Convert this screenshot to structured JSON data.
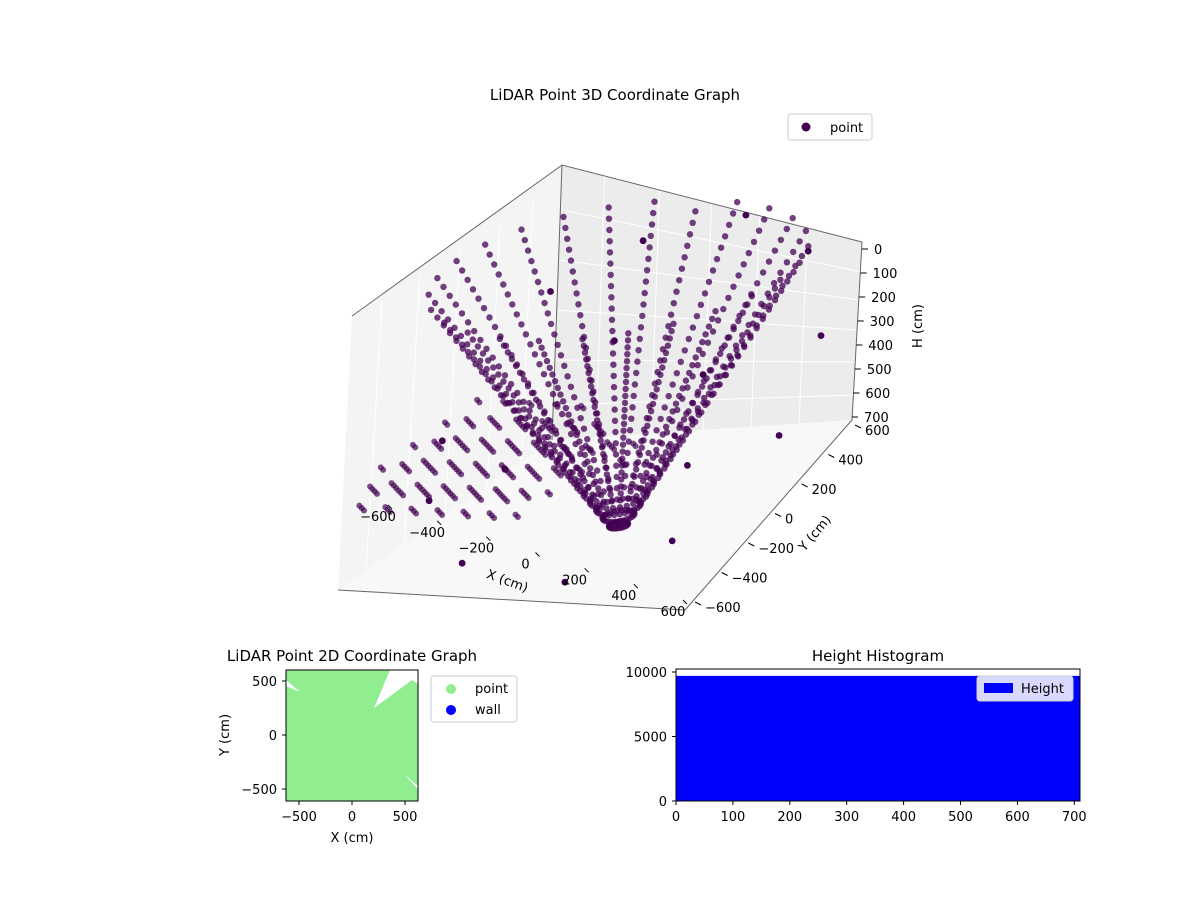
{
  "chart_data": [
    {
      "type": "scatter",
      "projection": "3d",
      "title": "LiDAR Point 3D Coordinate Graph",
      "xlabel": "X (cm)",
      "ylabel": "Y (cm)",
      "zlabel": "H (cm)",
      "x_ticks": [
        "−600",
        "−400",
        "−200",
        "0",
        "200",
        "400",
        "600"
      ],
      "y_ticks": [
        "−600",
        "−400",
        "−200",
        "0",
        "200",
        "400",
        "600"
      ],
      "z_ticks": [
        "0",
        "100",
        "200",
        "300",
        "400",
        "500",
        "600",
        "700"
      ],
      "xlim": [
        -600,
        600
      ],
      "ylim": [
        -600,
        600
      ],
      "zlim": [
        700,
        0
      ],
      "grid": true,
      "legend": [
        "point"
      ],
      "legend_position": "top-right",
      "point_color": "#440154",
      "series": [
        {
          "name": "point",
          "points": [
            [
              -560,
              -80,
              480
            ],
            [
              -420,
              300,
              210
            ],
            [
              -180,
              430,
              110
            ],
            [
              120,
              520,
              60
            ],
            [
              360,
              480,
              130
            ],
            [
              540,
              260,
              270
            ],
            [
              580,
              -40,
              430
            ],
            [
              420,
              -380,
              600
            ],
            [
              160,
              -560,
              660
            ],
            [
              -220,
              -520,
              640
            ],
            [
              -470,
              -300,
              560
            ],
            [
              0,
              0,
              700
            ],
            [
              200,
              150,
              350
            ],
            [
              -150,
              220,
              300
            ],
            [
              300,
              -100,
              500
            ],
            [
              -300,
              -150,
              520
            ]
          ]
        }
      ]
    },
    {
      "type": "scatter",
      "title": "LiDAR Point 2D Coordinate Graph",
      "xlabel": "X (cm)",
      "ylabel": "Y (cm)",
      "x_ticks": [
        "−500",
        "0",
        "500"
      ],
      "y_ticks": [
        "500",
        "0",
        "−500"
      ],
      "xlim": [
        -600,
        600
      ],
      "ylim": [
        -600,
        600
      ],
      "legend": [
        "point",
        "wall"
      ],
      "legend_position": "outside-right",
      "series": [
        {
          "name": "point",
          "color": "#90ee90"
        },
        {
          "name": "wall",
          "color": "#0000ff"
        }
      ]
    },
    {
      "type": "bar",
      "title": "Height Histogram",
      "x_ticks": [
        "0",
        "100",
        "200",
        "300",
        "400",
        "500",
        "600",
        "700"
      ],
      "y_ticks": [
        "10000",
        "5000",
        "0"
      ],
      "xlim": [
        0,
        710
      ],
      "ylim": [
        0,
        10000
      ],
      "legend": [
        "Height"
      ],
      "legend_position": "top-right",
      "bar_color": "#0000ff",
      "series": [
        {
          "name": "Height",
          "bin_range": [
            0,
            710
          ],
          "value": 9700
        }
      ]
    }
  ]
}
